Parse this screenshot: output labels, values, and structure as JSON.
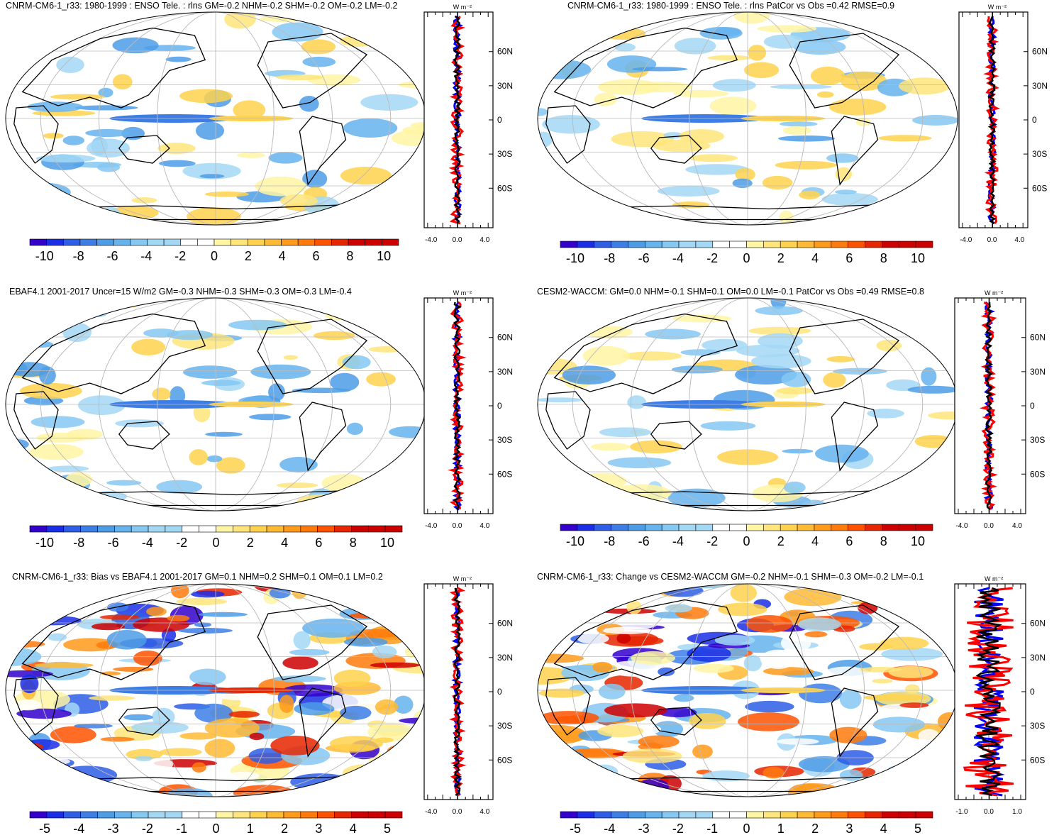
{
  "panels": [
    {
      "id": "p1",
      "title": "CNRM-CM6-1_r33: 1980-1999 : ENSO Tele. : rlns GM=-0.2 NHM=-0.2 SHM=-0.2 OM=-0.2 LM=-0.2",
      "colorbar": [
        "-10",
        "-8",
        "-6",
        "-4",
        "-2",
        "0",
        "2",
        "4",
        "6",
        "8",
        "10"
      ],
      "profile_ticks": [
        "-4.0",
        "0.0",
        "4.0"
      ]
    },
    {
      "id": "p2",
      "title": "CNRM-CM6-1_r33: 1980-1999 : ENSO Tele. : rlns PatCor vs Obs =0.42 RMSE=0.9",
      "colorbar": [
        "-10",
        "-8",
        "-6",
        "-4",
        "-2",
        "0",
        "2",
        "4",
        "6",
        "8",
        "10"
      ],
      "profile_ticks": [
        "-4.0",
        "0.0",
        "4.0"
      ]
    },
    {
      "id": "p3",
      "title": "EBAF4.1 2001-2017 Uncer=15 W/m2 GM=-0.3 NHM=-0.3 SHM=-0.3 OM=-0.3 LM=-0.4",
      "colorbar": [
        "-10",
        "-8",
        "-6",
        "-4",
        "-2",
        "0",
        "2",
        "4",
        "6",
        "8",
        "10"
      ],
      "profile_ticks": [
        "-4.0",
        "0.0",
        "4.0"
      ]
    },
    {
      "id": "p4",
      "title": "CESM2-WACCM: GM=0.0 NHM=-0.1 SHM=0.1 OM=0.0 LM=-0.1 PatCor vs Obs =0.49 RMSE=0.8",
      "colorbar": [
        "-10",
        "-8",
        "-6",
        "-4",
        "-2",
        "0",
        "2",
        "4",
        "6",
        "8",
        "10"
      ],
      "profile_ticks": [
        "-4.0",
        "0.0",
        "4.0"
      ]
    },
    {
      "id": "p5",
      "title": "CNRM-CM6-1_r33: Bias vs EBAF4.1 2001-2017 GM=0.1 NHM=0.2 SHM=0.1 OM=0.1 LM=0.2",
      "colorbar": [
        "-5",
        "-4",
        "-3",
        "-2",
        "-1",
        "0",
        "1",
        "2",
        "3",
        "4",
        "5"
      ],
      "profile_ticks": [
        "-4.0",
        "0.0",
        "4.0"
      ]
    },
    {
      "id": "p6",
      "title": "CNRM-CM6-1_r33: Change vs CESM2-WACCM GM=-0.2 NHM=-0.1 SHM=-0.3 OM=-0.2 LM=-0.1",
      "colorbar": [
        "-5",
        "-4",
        "-3",
        "-2",
        "-1",
        "0",
        "1",
        "2",
        "3",
        "4",
        "5"
      ],
      "profile_ticks": [
        "-1.0",
        "0.0",
        "1.0"
      ]
    }
  ],
  "lat_labels": [
    "60N",
    "30N",
    "0",
    "30S",
    "60S"
  ],
  "units_label": "W m⁻²",
  "palette": [
    "#3300cc",
    "#1a2ee6",
    "#2e5de6",
    "#3d7ee6",
    "#4d9ce6",
    "#66b3ee",
    "#85c8f2",
    "#a3d8f5",
    "#ffffff",
    "#ffffff",
    "#fff5a3",
    "#ffe57a",
    "#ffd24d",
    "#ffba33",
    "#ff9a1a",
    "#ff7a0d",
    "#ff5200",
    "#e62600",
    "#cc0000"
  ],
  "series_colors": {
    "model": "#ff0000",
    "obs": "#0000ff",
    "mean": "#000000"
  }
}
